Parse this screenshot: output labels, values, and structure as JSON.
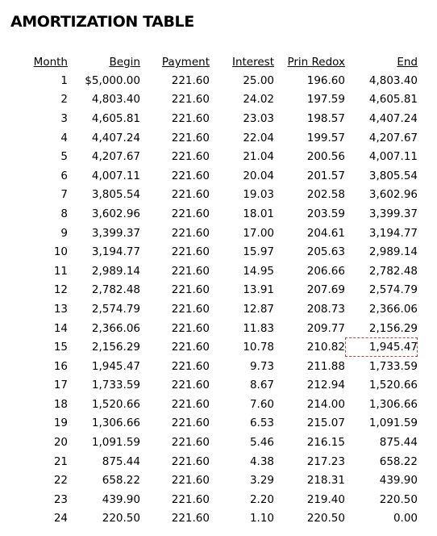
{
  "title": "AMORTIZATION TABLE",
  "columns": [
    "Month",
    "Begin",
    "Payment",
    "Interest",
    "Prin Redox",
    "End"
  ],
  "rows": [
    [
      "1",
      "$5,000.00",
      "221.60",
      "25.00",
      "196.60",
      "4,803.40"
    ],
    [
      "2",
      "4,803.40",
      "221.60",
      "24.02",
      "197.59",
      "4,605.81"
    ],
    [
      "3",
      "4,605.81",
      "221.60",
      "23.03",
      "198.57",
      "4,407.24"
    ],
    [
      "4",
      "4,407.24",
      "221.60",
      "22.04",
      "199.57",
      "4,207.67"
    ],
    [
      "5",
      "4,207.67",
      "221.60",
      "21.04",
      "200.56",
      "4,007.11"
    ],
    [
      "6",
      "4,007.11",
      "221.60",
      "20.04",
      "201.57",
      "3,805.54"
    ],
    [
      "7",
      "3,805.54",
      "221.60",
      "19.03",
      "202.58",
      "3,602.96"
    ],
    [
      "8",
      "3,602.96",
      "221.60",
      "18.01",
      "203.59",
      "3,399.37"
    ],
    [
      "9",
      "3,399.37",
      "221.60",
      "17.00",
      "204.61",
      "3,194.77"
    ],
    [
      "10",
      "3,194.77",
      "221.60",
      "15.97",
      "205.63",
      "2,989.14"
    ],
    [
      "11",
      "2,989.14",
      "221.60",
      "14.95",
      "206.66",
      "2,782.48"
    ],
    [
      "12",
      "2,782.48",
      "221.60",
      "13.91",
      "207.69",
      "2,574.79"
    ],
    [
      "13",
      "2,574.79",
      "221.60",
      "12.87",
      "208.73",
      "2,366.06"
    ],
    [
      "14",
      "2,366.06",
      "221.60",
      "11.83",
      "209.77",
      "2,156.29"
    ],
    [
      "15",
      "2,156.29",
      "221.60",
      "10.78",
      "210.82",
      "1,945.47"
    ],
    [
      "16",
      "1,945.47",
      "221.60",
      "9.73",
      "211.88",
      "1,733.59"
    ],
    [
      "17",
      "1,733.59",
      "221.60",
      "8.67",
      "212.94",
      "1,520.66"
    ],
    [
      "18",
      "1,520.66",
      "221.60",
      "7.60",
      "214.00",
      "1,306.66"
    ],
    [
      "19",
      "1,306.66",
      "221.60",
      "6.53",
      "215.07",
      "1,091.59"
    ],
    [
      "20",
      "1,091.59",
      "221.60",
      "5.46",
      "216.15",
      "875.44"
    ],
    [
      "21",
      "875.44",
      "221.60",
      "4.38",
      "217.23",
      "658.22"
    ],
    [
      "22",
      "658.22",
      "221.60",
      "3.29",
      "218.31",
      "439.90"
    ],
    [
      "23",
      "439.90",
      "221.60",
      "2.20",
      "219.40",
      "220.50"
    ],
    [
      "24",
      "220.50",
      "221.60",
      "1.10",
      "220.50",
      "0.00"
    ]
  ],
  "selected_cell": {
    "row": 15,
    "column": "End"
  },
  "selection_border_color": "#b5443a"
}
